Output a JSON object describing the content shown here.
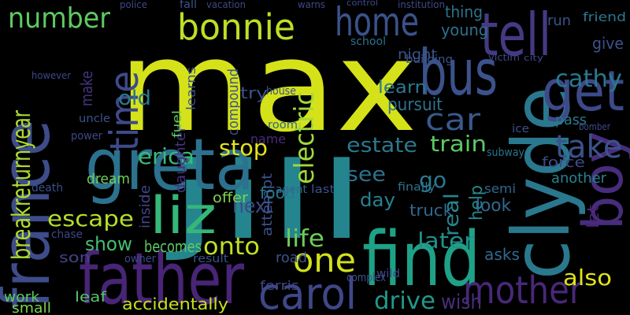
{
  "words": [
    {
      "text": "max",
      "color": "#d5e21a"
    },
    {
      "text": "jill",
      "color": "#25858e"
    },
    {
      "text": "clyde",
      "color": "#2a788e"
    },
    {
      "text": "france",
      "color": "#3e4c8a"
    },
    {
      "text": "father",
      "color": "#482576"
    },
    {
      "text": "find",
      "color": "#1fa187"
    },
    {
      "text": "greta",
      "color": "#2c718e"
    },
    {
      "text": "bus",
      "color": "#3b528b"
    },
    {
      "text": "tell",
      "color": "#443a83"
    },
    {
      "text": "boy",
      "color": "#472d7b"
    },
    {
      "text": "get",
      "color": "#3e4989"
    },
    {
      "text": "home",
      "color": "#3b528b"
    },
    {
      "text": "bonnie",
      "color": "#bddf26"
    },
    {
      "text": "number",
      "color": "#5ec962"
    },
    {
      "text": "time",
      "color": "#3e4a89"
    },
    {
      "text": "liz",
      "color": "#35b779"
    },
    {
      "text": "carol",
      "color": "#3f4788"
    },
    {
      "text": "mother",
      "color": "#482878"
    },
    {
      "text": "one",
      "color": "#d0e11c"
    },
    {
      "text": "onto",
      "color": "#c2df23"
    },
    {
      "text": "car",
      "color": "#38598c"
    },
    {
      "text": "electric",
      "color": "#a0da39"
    },
    {
      "text": "take",
      "color": "#3b528b"
    },
    {
      "text": "cathy",
      "color": "#2a788e"
    },
    {
      "text": "break",
      "color": "#addc30"
    },
    {
      "text": "return",
      "color": "#addc30"
    },
    {
      "text": "year",
      "color": "#addc30"
    },
    {
      "text": "escape",
      "color": "#b5de2b"
    },
    {
      "text": "erica",
      "color": "#3aba76"
    },
    {
      "text": "stop",
      "color": "#e5e419"
    },
    {
      "text": "estate",
      "color": "#2a788e"
    },
    {
      "text": "train",
      "color": "#5ec962"
    },
    {
      "text": "see",
      "color": "#2c728e"
    },
    {
      "text": "go",
      "color": "#29798e"
    },
    {
      "text": "day",
      "color": "#26828e"
    },
    {
      "text": "truck",
      "color": "#31688e"
    },
    {
      "text": "life",
      "color": "#6ccd5a"
    },
    {
      "text": "later",
      "color": "#21918c"
    },
    {
      "text": "next",
      "color": "#3e4989"
    },
    {
      "text": "show",
      "color": "#44bf70"
    },
    {
      "text": "becomes",
      "color": "#5ec962"
    },
    {
      "text": "also",
      "color": "#e2e418"
    },
    {
      "text": "drive",
      "color": "#1f9a8a"
    },
    {
      "text": "wish",
      "color": "#472f7d"
    },
    {
      "text": "accidentally",
      "color": "#c8e020"
    },
    {
      "text": "learn",
      "color": "#2a788e"
    },
    {
      "text": "thing",
      "color": "#2c728e"
    },
    {
      "text": "young",
      "color": "#2c728e"
    },
    {
      "text": "old",
      "color": "#2a788e"
    },
    {
      "text": "make",
      "color": "#46337e"
    },
    {
      "text": "pursuit",
      "color": "#2c728e"
    },
    {
      "text": "daughter",
      "color": "#46327e"
    },
    {
      "text": "compound",
      "color": "#3b528b"
    },
    {
      "text": "fuel",
      "color": "#5ec962"
    },
    {
      "text": "learns",
      "color": "#3b528b"
    },
    {
      "text": "name",
      "color": "#472d7b"
    },
    {
      "text": "attempt",
      "color": "#3b528b"
    },
    {
      "text": "real",
      "color": "#25858e"
    },
    {
      "text": "help",
      "color": "#23898e"
    },
    {
      "text": "look",
      "color": "#31688e"
    },
    {
      "text": "asks",
      "color": "#31688e"
    },
    {
      "text": "another",
      "color": "#25838e"
    },
    {
      "text": "force",
      "color": "#3e4a89"
    },
    {
      "text": "pass",
      "color": "#2a788e"
    },
    {
      "text": "friend",
      "color": "#2a788e"
    },
    {
      "text": "give",
      "color": "#3b528b"
    },
    {
      "text": "let",
      "color": "#482475"
    },
    {
      "text": "run",
      "color": "#3b528b"
    },
    {
      "text": "night",
      "color": "#3b528b"
    },
    {
      "text": "son",
      "color": "#414487"
    },
    {
      "text": "work",
      "color": "#5ec962"
    },
    {
      "text": "small",
      "color": "#7ad151"
    },
    {
      "text": "leaf",
      "color": "#54c568"
    },
    {
      "text": "offer",
      "color": "#7fd34e"
    },
    {
      "text": "food",
      "color": "#2a788e"
    },
    {
      "text": "inside",
      "color": "#414487"
    },
    {
      "text": "dream",
      "color": "#6ece58"
    },
    {
      "text": "road",
      "color": "#3b528b"
    },
    {
      "text": "ferris",
      "color": "#3e4989"
    },
    {
      "text": "try",
      "color": "#3b528b"
    },
    {
      "text": "house",
      "color": "#3b528b"
    },
    {
      "text": "room",
      "color": "#31688e"
    },
    {
      "text": "uncle",
      "color": "#3b528b"
    },
    {
      "text": "however",
      "color": "#3e4989"
    },
    {
      "text": "semi",
      "color": "#31688e"
    },
    {
      "text": "finally",
      "color": "#2c728e"
    },
    {
      "text": "ice",
      "color": "#3b528b"
    },
    {
      "text": "subway",
      "color": "#2c728e"
    },
    {
      "text": "bomber",
      "color": "#3e4989"
    },
    {
      "text": "school",
      "color": "#2c728e"
    },
    {
      "text": "building",
      "color": "#3b528b"
    },
    {
      "text": "agent",
      "color": "#31688e"
    },
    {
      "text": "last",
      "color": "#3b528b"
    },
    {
      "text": "chase",
      "color": "#3e4989"
    },
    {
      "text": "death",
      "color": "#3b528b"
    },
    {
      "text": "power",
      "color": "#3e4989"
    },
    {
      "text": "complex",
      "color": "#3b528b"
    },
    {
      "text": "wild",
      "color": "#3e4989"
    },
    {
      "text": "result",
      "color": "#3b528b"
    },
    {
      "text": "owner",
      "color": "#3e4989"
    },
    {
      "text": "victim",
      "color": "#3e4989"
    },
    {
      "text": "police",
      "color": "#3e4989"
    },
    {
      "text": "fall",
      "color": "#3b528b"
    },
    {
      "text": "vacation",
      "color": "#3e4989"
    },
    {
      "text": "warns",
      "color": "#3e4989"
    },
    {
      "text": "control",
      "color": "#3e4989"
    },
    {
      "text": "institution",
      "color": "#3e4989"
    },
    {
      "text": "city",
      "color": "#3e4989"
    }
  ]
}
